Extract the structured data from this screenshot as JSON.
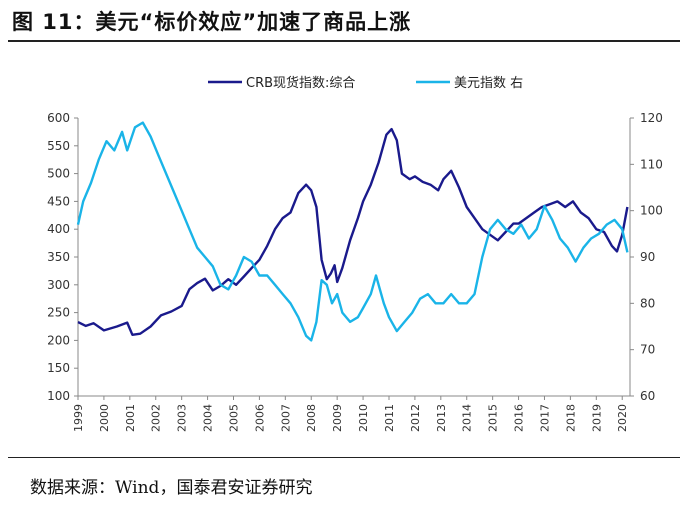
{
  "title": "图 11：美元“标价效应”加速了商品上涨",
  "source": "数据来源：Wind，国泰君安证券研究",
  "colors": {
    "crb": "#1a1a8c",
    "dxy": "#1ab4e8"
  },
  "chart_data": {
    "type": "line",
    "legend_position": "top-center",
    "grid": false,
    "x_ticks": [
      "1999",
      "2000",
      "2001",
      "2002",
      "2003",
      "2004",
      "2005",
      "2006",
      "2007",
      "2008",
      "2009",
      "2010",
      "2011",
      "2012",
      "2013",
      "2014",
      "2015",
      "2016",
      "2017",
      "2018",
      "2019",
      "2020"
    ],
    "xlim": [
      1999,
      2020.3
    ],
    "ylim_left": [
      100,
      600
    ],
    "yticks_left": [
      100,
      150,
      200,
      250,
      300,
      350,
      400,
      450,
      500,
      550,
      600
    ],
    "ylim_right": [
      60,
      120
    ],
    "yticks_right": [
      60,
      70,
      80,
      90,
      100,
      110,
      120
    ],
    "series": [
      {
        "name": "CRB现货指数:综合",
        "axis": "left",
        "color": "#1a1a8c",
        "x": [
          1999.0,
          1999.3,
          1999.6,
          2000.0,
          2000.5,
          2000.9,
          2001.1,
          2001.4,
          2001.8,
          2002.2,
          2002.6,
          2003.0,
          2003.3,
          2003.6,
          2003.9,
          2004.2,
          2004.5,
          2004.8,
          2005.1,
          2005.4,
          2005.7,
          2006.0,
          2006.3,
          2006.6,
          2006.9,
          2007.2,
          2007.5,
          2007.8,
          2008.0,
          2008.2,
          2008.4,
          2008.6,
          2008.75,
          2008.9,
          2009.0,
          2009.2,
          2009.5,
          2009.8,
          2010.0,
          2010.3,
          2010.6,
          2010.9,
          2011.1,
          2011.3,
          2011.5,
          2011.8,
          2012.0,
          2012.3,
          2012.6,
          2012.9,
          2013.1,
          2013.4,
          2013.7,
          2014.0,
          2014.3,
          2014.6,
          2014.9,
          2015.2,
          2015.5,
          2015.8,
          2016.0,
          2016.3,
          2016.6,
          2016.9,
          2017.2,
          2017.5,
          2017.8,
          2018.1,
          2018.4,
          2018.7,
          2019.0,
          2019.3,
          2019.6,
          2019.8,
          2020.0,
          2020.2
        ],
        "y": [
          233,
          226,
          231,
          218,
          225,
          232,
          210,
          212,
          225,
          245,
          252,
          262,
          292,
          303,
          311,
          290,
          298,
          310,
          300,
          315,
          330,
          345,
          370,
          400,
          420,
          430,
          465,
          480,
          470,
          440,
          345,
          310,
          320,
          335,
          305,
          330,
          380,
          420,
          450,
          480,
          520,
          570,
          580,
          560,
          500,
          490,
          495,
          485,
          480,
          470,
          490,
          505,
          475,
          440,
          420,
          400,
          390,
          380,
          395,
          410,
          410,
          420,
          430,
          440,
          445,
          450,
          440,
          450,
          430,
          420,
          400,
          395,
          370,
          360,
          390,
          440
        ]
      },
      {
        "name": "美元指数 右",
        "axis": "right",
        "color": "#1ab4e8",
        "x": [
          1999.0,
          1999.2,
          1999.5,
          1999.8,
          2000.1,
          2000.4,
          2000.7,
          2000.9,
          2001.2,
          2001.5,
          2001.8,
          2002.1,
          2002.4,
          2002.7,
          2003.0,
          2003.3,
          2003.6,
          2003.9,
          2004.2,
          2004.5,
          2004.8,
          2005.1,
          2005.4,
          2005.7,
          2006.0,
          2006.3,
          2006.6,
          2006.9,
          2007.2,
          2007.5,
          2007.8,
          2008.0,
          2008.2,
          2008.4,
          2008.6,
          2008.8,
          2009.0,
          2009.2,
          2009.5,
          2009.8,
          2010.0,
          2010.3,
          2010.5,
          2010.8,
          2011.0,
          2011.3,
          2011.6,
          2011.9,
          2012.2,
          2012.5,
          2012.8,
          2013.1,
          2013.4,
          2013.7,
          2014.0,
          2014.3,
          2014.6,
          2014.9,
          2015.2,
          2015.5,
          2015.8,
          2016.1,
          2016.4,
          2016.7,
          2017.0,
          2017.3,
          2017.6,
          2017.9,
          2018.2,
          2018.5,
          2018.8,
          2019.1,
          2019.4,
          2019.7,
          2020.0,
          2020.2
        ],
        "y": [
          97,
          102,
          106,
          111,
          115,
          113,
          117,
          113,
          118,
          119,
          116,
          112,
          108,
          104,
          100,
          96,
          92,
          90,
          88,
          84,
          83,
          86,
          90,
          89,
          86,
          86,
          84,
          82,
          80,
          77,
          73,
          72,
          76,
          85,
          84,
          80,
          82,
          78,
          76,
          77,
          79,
          82,
          86,
          80,
          77,
          74,
          76,
          78,
          81,
          82,
          80,
          80,
          82,
          80,
          80,
          82,
          90,
          96,
          98,
          96,
          95,
          97,
          94,
          96,
          101,
          98,
          94,
          92,
          89,
          92,
          94,
          95,
          97,
          98,
          96,
          91
        ]
      }
    ]
  }
}
